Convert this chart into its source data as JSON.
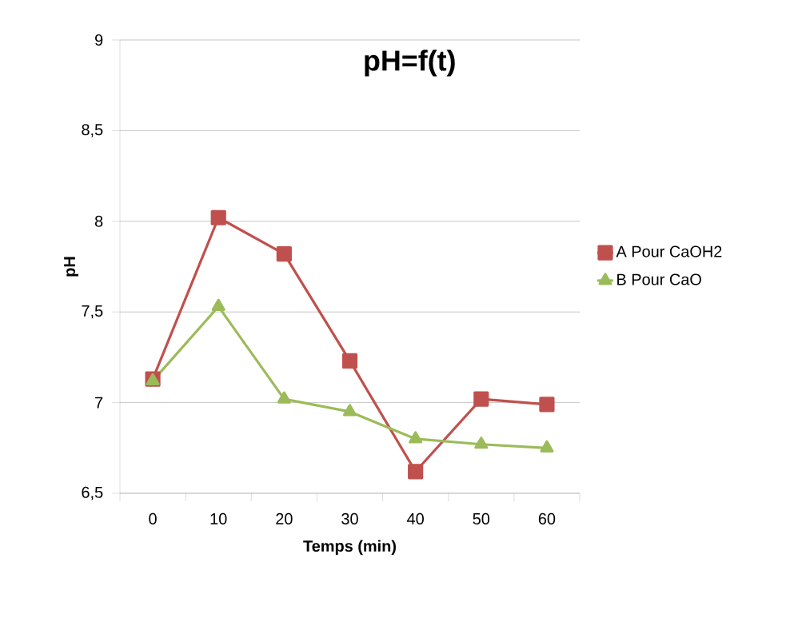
{
  "chart_data": {
    "type": "line",
    "title": "pH=f(t)",
    "xlabel": "Temps (min)",
    "ylabel": "pH",
    "categories": [
      "0",
      "10",
      "20",
      "30",
      "40",
      "50",
      "60"
    ],
    "series": [
      {
        "name": "A Pour CaOH2",
        "color": "#c0504d",
        "marker": "square",
        "values": [
          7.13,
          8.02,
          7.82,
          7.23,
          6.62,
          7.02,
          6.99
        ]
      },
      {
        "name": "B Pour CaO",
        "color": "#9bbb59",
        "marker": "triangle",
        "values": [
          7.12,
          7.53,
          7.02,
          6.95,
          6.8,
          6.77,
          6.75
        ]
      }
    ],
    "ylim": [
      6.5,
      9
    ],
    "yticks": [
      {
        "value": 6.5,
        "label": "6,5"
      },
      7,
      {
        "value": 7.5,
        "label": "7,5"
      },
      8,
      {
        "value": 8.5,
        "label": "8,5"
      },
      9
    ],
    "grid": "y",
    "legend": "right",
    "line_style": "solid"
  }
}
